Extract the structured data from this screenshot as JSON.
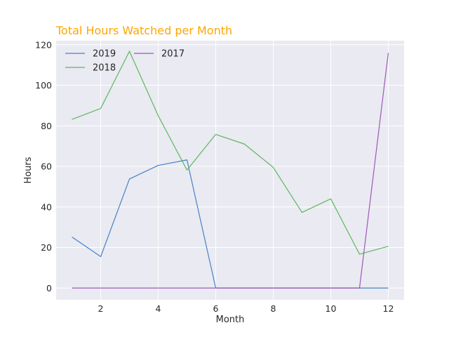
{
  "chart_data": {
    "type": "line",
    "title": "Total Hours Watched per Month",
    "title_color": "#FFA500",
    "xlabel": "Month",
    "ylabel": "Hours",
    "x": [
      1,
      2,
      3,
      4,
      5,
      6,
      7,
      8,
      9,
      10,
      11,
      12
    ],
    "xlim": [
      0.45,
      12.55
    ],
    "ylim": [
      -5.8,
      122.0
    ],
    "xticks": [
      2,
      4,
      6,
      8,
      10,
      12
    ],
    "yticks": [
      0,
      20,
      40,
      60,
      80,
      100,
      120
    ],
    "grid": true,
    "legend_position": "top-left",
    "series": [
      {
        "name": "2019",
        "color": "#4682C4",
        "values": [
          25.2,
          15.5,
          53.8,
          60.5,
          63.2,
          0,
          0,
          0,
          0,
          0,
          0,
          0
        ]
      },
      {
        "name": "2018",
        "color": "#5CB85C",
        "values": [
          83.2,
          88.6,
          116.8,
          85.0,
          58.2,
          75.8,
          71.0,
          59.5,
          37.3,
          44.0,
          16.7,
          20.6
        ]
      },
      {
        "name": "2017",
        "color": "#9B59B6",
        "values": [
          0,
          0,
          0,
          0,
          0,
          0,
          0,
          0,
          0,
          0,
          0,
          116.0
        ]
      }
    ]
  }
}
